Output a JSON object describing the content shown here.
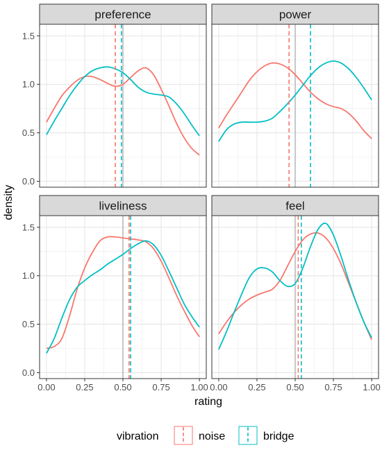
{
  "chart_data": {
    "type": "line",
    "xlabel": "rating",
    "ylabel": "density",
    "xlim": [
      0,
      1
    ],
    "ylim": [
      0,
      1.6
    ],
    "x_ticks": [
      0,
      0.25,
      0.5,
      0.75,
      1
    ],
    "x_tick_labels": [
      "0.00",
      "0.25",
      "0.50",
      "0.75",
      "1.00"
    ],
    "y_ticks": [
      0,
      0.5,
      1,
      1.5
    ],
    "y_tick_labels": [
      "0.0",
      "0.5",
      "1.0",
      "1.5"
    ],
    "grid": true,
    "legend": {
      "title": "vibration",
      "position": "bottom",
      "entries": [
        {
          "name": "noise",
          "color": "#F8766D"
        },
        {
          "name": "bridge",
          "color": "#00BFC4"
        }
      ]
    },
    "colors": {
      "noise": "#F8766D",
      "bridge": "#00BFC4"
    },
    "reference_line_x": 0.5,
    "facets": [
      {
        "name": "preference",
        "means": {
          "noise": 0.45,
          "bridge": 0.49
        },
        "series": [
          {
            "name": "noise",
            "x": [
              0,
              0.05,
              0.1,
              0.15,
              0.2,
              0.25,
              0.3,
              0.35,
              0.4,
              0.45,
              0.5,
              0.55,
              0.6,
              0.65,
              0.7,
              0.75,
              0.8,
              0.85,
              0.9,
              0.95,
              1.0
            ],
            "y": [
              0.61,
              0.75,
              0.88,
              0.97,
              1.04,
              1.08,
              1.08,
              1.05,
              1.01,
              0.98,
              1.0,
              1.07,
              1.14,
              1.17,
              1.1,
              0.95,
              0.78,
              0.6,
              0.45,
              0.34,
              0.27
            ]
          },
          {
            "name": "bridge",
            "x": [
              0,
              0.05,
              0.1,
              0.15,
              0.2,
              0.25,
              0.3,
              0.35,
              0.4,
              0.45,
              0.5,
              0.55,
              0.6,
              0.65,
              0.7,
              0.75,
              0.8,
              0.85,
              0.9,
              0.95,
              1.0
            ],
            "y": [
              0.48,
              0.62,
              0.75,
              0.88,
              0.99,
              1.08,
              1.14,
              1.17,
              1.18,
              1.16,
              1.12,
              1.05,
              0.97,
              0.92,
              0.9,
              0.89,
              0.87,
              0.8,
              0.7,
              0.58,
              0.47
            ]
          }
        ]
      },
      {
        "name": "power",
        "means": {
          "noise": 0.46,
          "bridge": 0.6
        },
        "series": [
          {
            "name": "noise",
            "x": [
              0,
              0.05,
              0.1,
              0.15,
              0.2,
              0.25,
              0.3,
              0.35,
              0.4,
              0.45,
              0.5,
              0.55,
              0.6,
              0.65,
              0.7,
              0.75,
              0.8,
              0.85,
              0.9,
              0.95,
              1.0
            ],
            "y": [
              0.55,
              0.68,
              0.8,
              0.92,
              1.04,
              1.13,
              1.19,
              1.22,
              1.21,
              1.17,
              1.1,
              1.01,
              0.92,
              0.85,
              0.8,
              0.77,
              0.75,
              0.7,
              0.62,
              0.52,
              0.44
            ]
          },
          {
            "name": "bridge",
            "x": [
              0,
              0.05,
              0.1,
              0.15,
              0.2,
              0.25,
              0.3,
              0.35,
              0.4,
              0.45,
              0.5,
              0.55,
              0.6,
              0.65,
              0.7,
              0.75,
              0.8,
              0.85,
              0.9,
              0.95,
              1.0
            ],
            "y": [
              0.41,
              0.53,
              0.59,
              0.61,
              0.61,
              0.61,
              0.62,
              0.65,
              0.72,
              0.8,
              0.89,
              0.99,
              1.09,
              1.17,
              1.22,
              1.24,
              1.22,
              1.16,
              1.07,
              0.96,
              0.84
            ]
          }
        ]
      },
      {
        "name": "liveliness",
        "means": {
          "noise": 0.54,
          "bridge": 0.55
        },
        "series": [
          {
            "name": "noise",
            "x": [
              0,
              0.05,
              0.1,
              0.15,
              0.2,
              0.25,
              0.3,
              0.35,
              0.4,
              0.45,
              0.5,
              0.55,
              0.6,
              0.65,
              0.7,
              0.75,
              0.8,
              0.85,
              0.9,
              0.95,
              1.0
            ],
            "y": [
              0.25,
              0.27,
              0.35,
              0.58,
              0.86,
              1.08,
              1.24,
              1.36,
              1.4,
              1.4,
              1.39,
              1.38,
              1.37,
              1.35,
              1.28,
              1.15,
              0.98,
              0.8,
              0.64,
              0.49,
              0.37
            ]
          },
          {
            "name": "bridge",
            "x": [
              0,
              0.05,
              0.1,
              0.15,
              0.2,
              0.25,
              0.3,
              0.35,
              0.4,
              0.45,
              0.5,
              0.55,
              0.6,
              0.65,
              0.7,
              0.75,
              0.8,
              0.85,
              0.9,
              0.95,
              1.0
            ],
            "y": [
              0.2,
              0.35,
              0.56,
              0.75,
              0.88,
              0.95,
              1.01,
              1.06,
              1.12,
              1.17,
              1.22,
              1.28,
              1.33,
              1.36,
              1.32,
              1.21,
              1.05,
              0.88,
              0.71,
              0.58,
              0.47
            ]
          }
        ]
      },
      {
        "name": "feel",
        "means": {
          "noise": 0.52,
          "bridge": 0.54
        },
        "series": [
          {
            "name": "noise",
            "x": [
              0,
              0.05,
              0.1,
              0.15,
              0.2,
              0.25,
              0.3,
              0.35,
              0.4,
              0.45,
              0.5,
              0.55,
              0.6,
              0.65,
              0.7,
              0.75,
              0.8,
              0.85,
              0.9,
              0.95,
              1.0
            ],
            "y": [
              0.4,
              0.52,
              0.62,
              0.7,
              0.76,
              0.8,
              0.83,
              0.86,
              0.95,
              1.1,
              1.25,
              1.37,
              1.43,
              1.44,
              1.39,
              1.28,
              1.12,
              0.92,
              0.72,
              0.52,
              0.34
            ]
          },
          {
            "name": "bridge",
            "x": [
              0,
              0.05,
              0.1,
              0.15,
              0.2,
              0.25,
              0.3,
              0.35,
              0.4,
              0.45,
              0.5,
              0.55,
              0.6,
              0.65,
              0.7,
              0.75,
              0.8,
              0.85,
              0.9,
              0.95,
              1.0
            ],
            "y": [
              0.24,
              0.42,
              0.62,
              0.81,
              0.98,
              1.07,
              1.08,
              1.04,
              0.95,
              0.89,
              0.92,
              1.08,
              1.3,
              1.48,
              1.54,
              1.42,
              1.2,
              0.95,
              0.72,
              0.52,
              0.36
            ]
          }
        ]
      }
    ]
  }
}
